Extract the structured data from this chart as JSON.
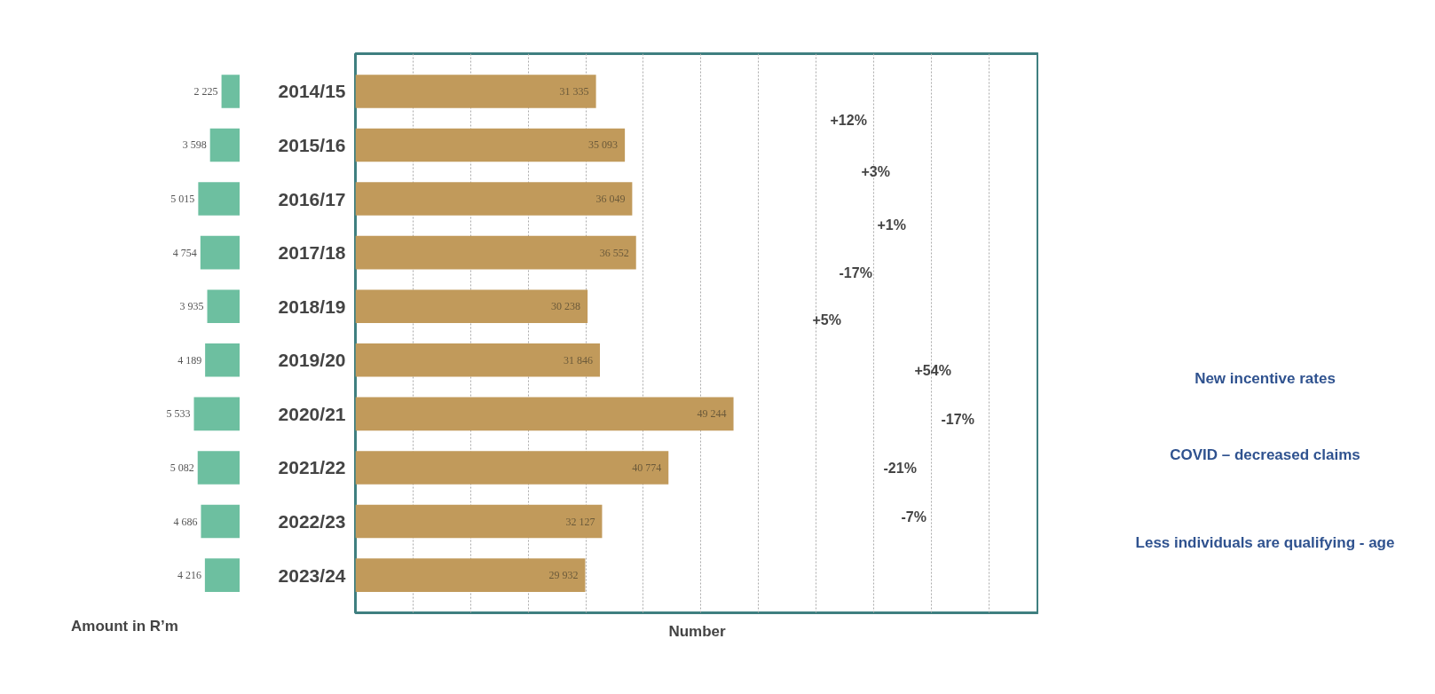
{
  "chart_data": [
    {
      "type": "bar",
      "orientation": "horizontal",
      "xlabel": "Amount in R’m",
      "tick_labels": false,
      "categories": [
        "2014/15",
        "2015/16",
        "2016/17",
        "2017/18",
        "2018/19",
        "2019/20",
        "2020/21",
        "2021/22",
        "2022/23",
        "2023/24"
      ],
      "values": [
        2225,
        3598,
        5015,
        4754,
        3935,
        4189,
        5533,
        5082,
        4686,
        4216
      ],
      "value_labels": [
        "2 225",
        "3 598",
        "5 015",
        "4 754",
        "3 935",
        "4 189",
        "5 533",
        "5 082",
        "4 686",
        "4 216"
      ],
      "color": "#6dbfa0"
    },
    {
      "type": "bar",
      "orientation": "horizontal",
      "xlabel": "Number",
      "tick_labels": "y",
      "xlim": [
        0,
        89000
      ],
      "xticks": [
        {
          "value": 7500,
          "label": null
        },
        {
          "value": 15000,
          "label": null
        },
        {
          "value": 22500,
          "label": null
        },
        {
          "value": 30000,
          "label": null
        },
        {
          "value": 37500,
          "label": null
        },
        {
          "value": 45000,
          "label": null
        },
        {
          "value": 52500,
          "label": null
        },
        {
          "value": 60000,
          "label": null
        },
        {
          "value": 67500,
          "label": null
        },
        {
          "value": 75000,
          "label": null
        },
        {
          "value": 82500,
          "label": null
        }
      ],
      "grid": "x",
      "categories": [
        "2014/15",
        "2015/16",
        "2016/17",
        "2017/18",
        "2018/19",
        "2019/20",
        "2020/21",
        "2021/22",
        "2022/23",
        "2023/24"
      ],
      "values": [
        31335,
        35093,
        36049,
        36552,
        30238,
        31846,
        49244,
        40774,
        32127,
        29932
      ],
      "value_labels": [
        "31 335",
        "35 093",
        "36 049",
        "36 552",
        "30 238",
        "31 846",
        "49 244",
        "40 774",
        "32 127",
        "29 932"
      ],
      "color": "#c19a5b",
      "annotations": [
        "+12%",
        "+3%",
        "+1%",
        "-17%",
        "+5%",
        "+54%",
        "-17%",
        "-21%",
        "-7%",
        "New incentive rates",
        "COVID – decreased claims",
        "Less individuals are qualifying - age"
      ]
    }
  ]
}
